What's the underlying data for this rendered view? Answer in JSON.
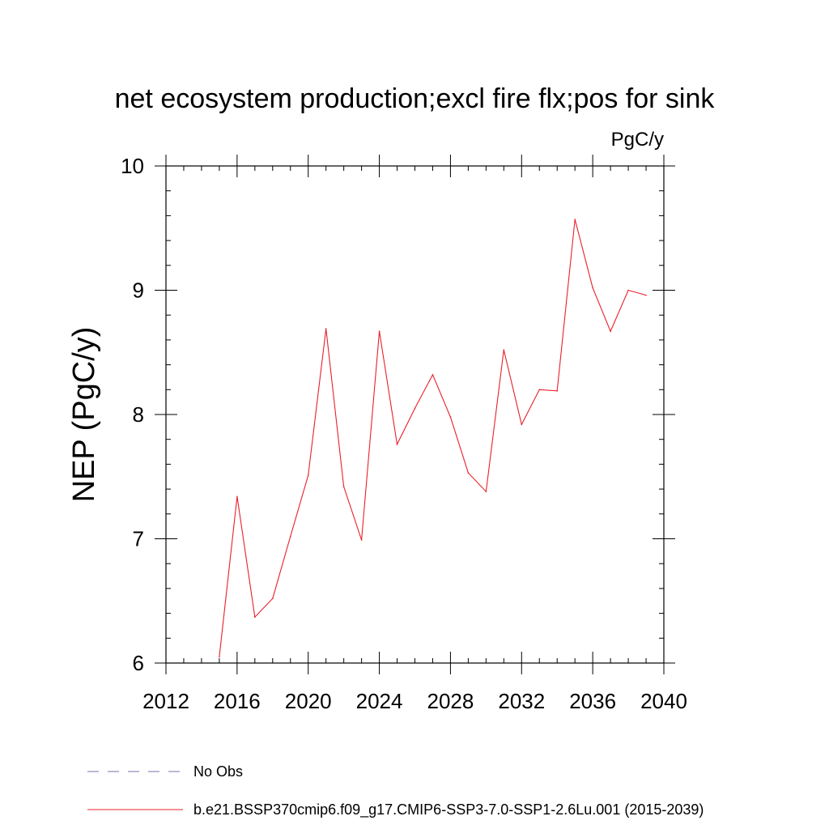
{
  "chart_data": {
    "type": "line",
    "title": "net ecosystem production;excl fire flx;pos for sink",
    "units": "PgC/y",
    "ylabel": "NEP  (PgC/y)",
    "xlabel": "",
    "xlim": [
      2012,
      2040
    ],
    "ylim": [
      6,
      10
    ],
    "x_ticks": [
      2012,
      2016,
      2020,
      2024,
      2028,
      2032,
      2036,
      2040
    ],
    "x_tick_labels": [
      "2012",
      "2016",
      "2020",
      "2024",
      "2028",
      "2032",
      "2036",
      "2040"
    ],
    "y_ticks": [
      6,
      7,
      8,
      9,
      10
    ],
    "y_tick_labels": [
      "6",
      "7",
      "8",
      "9",
      "10"
    ],
    "grid": false,
    "legend_position": "bottom",
    "legend": [
      {
        "label": "No Obs",
        "style": "dashed",
        "color": "#7a6fae"
      },
      {
        "label": "b.e21.BSSP370cmip6.f09_g17.CMIP6-SSP3-7.0-SSP1-2.6Lu.001 (2015-2039)",
        "style": "solid",
        "color": "#e8202a"
      }
    ],
    "series": [
      {
        "name": "b.e21.BSSP370cmip6.f09_g17.CMIP6-SSP3-7.0-SSP1-2.6Lu.001 (2015-2039)",
        "color": "#e8202a",
        "x": [
          2015,
          2016,
          2017,
          2018,
          2019,
          2020,
          2021,
          2022,
          2023,
          2024,
          2025,
          2026,
          2027,
          2028,
          2029,
          2030,
          2031,
          2032,
          2033,
          2034,
          2035,
          2036,
          2037,
          2038,
          2039
        ],
        "y": [
          6.05,
          7.34,
          6.37,
          6.52,
          7.02,
          7.51,
          8.69,
          7.42,
          6.99,
          8.67,
          7.76,
          8.05,
          8.32,
          7.98,
          7.53,
          7.38,
          8.52,
          7.92,
          8.2,
          8.19,
          9.57,
          9.02,
          8.67,
          9.0,
          8.96
        ]
      }
    ]
  }
}
